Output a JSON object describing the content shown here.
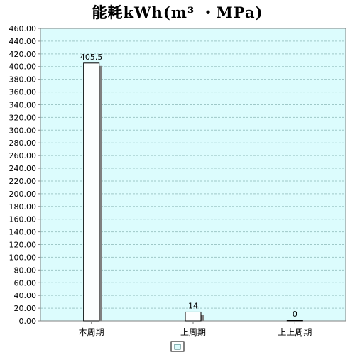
{
  "chart_data": {
    "type": "bar",
    "title": "能耗kWh(m³ ・MPa)",
    "categories": [
      "本周期",
      "上周期",
      "上上周期"
    ],
    "values": [
      405.5,
      14,
      0
    ],
    "data_labels": [
      "405.5",
      "14",
      "0"
    ],
    "ylim": [
      0,
      460
    ],
    "ytick_step": 20,
    "ytick_labels": [
      "0.00",
      "20.00",
      "40.00",
      "60.00",
      "80.00",
      "100.00",
      "120.00",
      "140.00",
      "160.00",
      "180.00",
      "200.00",
      "220.00",
      "240.00",
      "260.00",
      "280.00",
      "300.00",
      "320.00",
      "340.00",
      "360.00",
      "380.00",
      "400.00",
      "420.00",
      "440.00",
      "460.00"
    ],
    "xlabel": "",
    "ylabel": "",
    "grid": true,
    "legend": {
      "placement": "bottom-center",
      "entries": [
        ""
      ]
    },
    "colors": {
      "plot_background": "#dcfcfd",
      "bar_fill": "#fcfefe",
      "bar_stroke": "#000000",
      "bar_shadow": "#808080",
      "gridline": "#9ec8c8",
      "axis": "#808080",
      "tick_text": "#000000"
    }
  }
}
